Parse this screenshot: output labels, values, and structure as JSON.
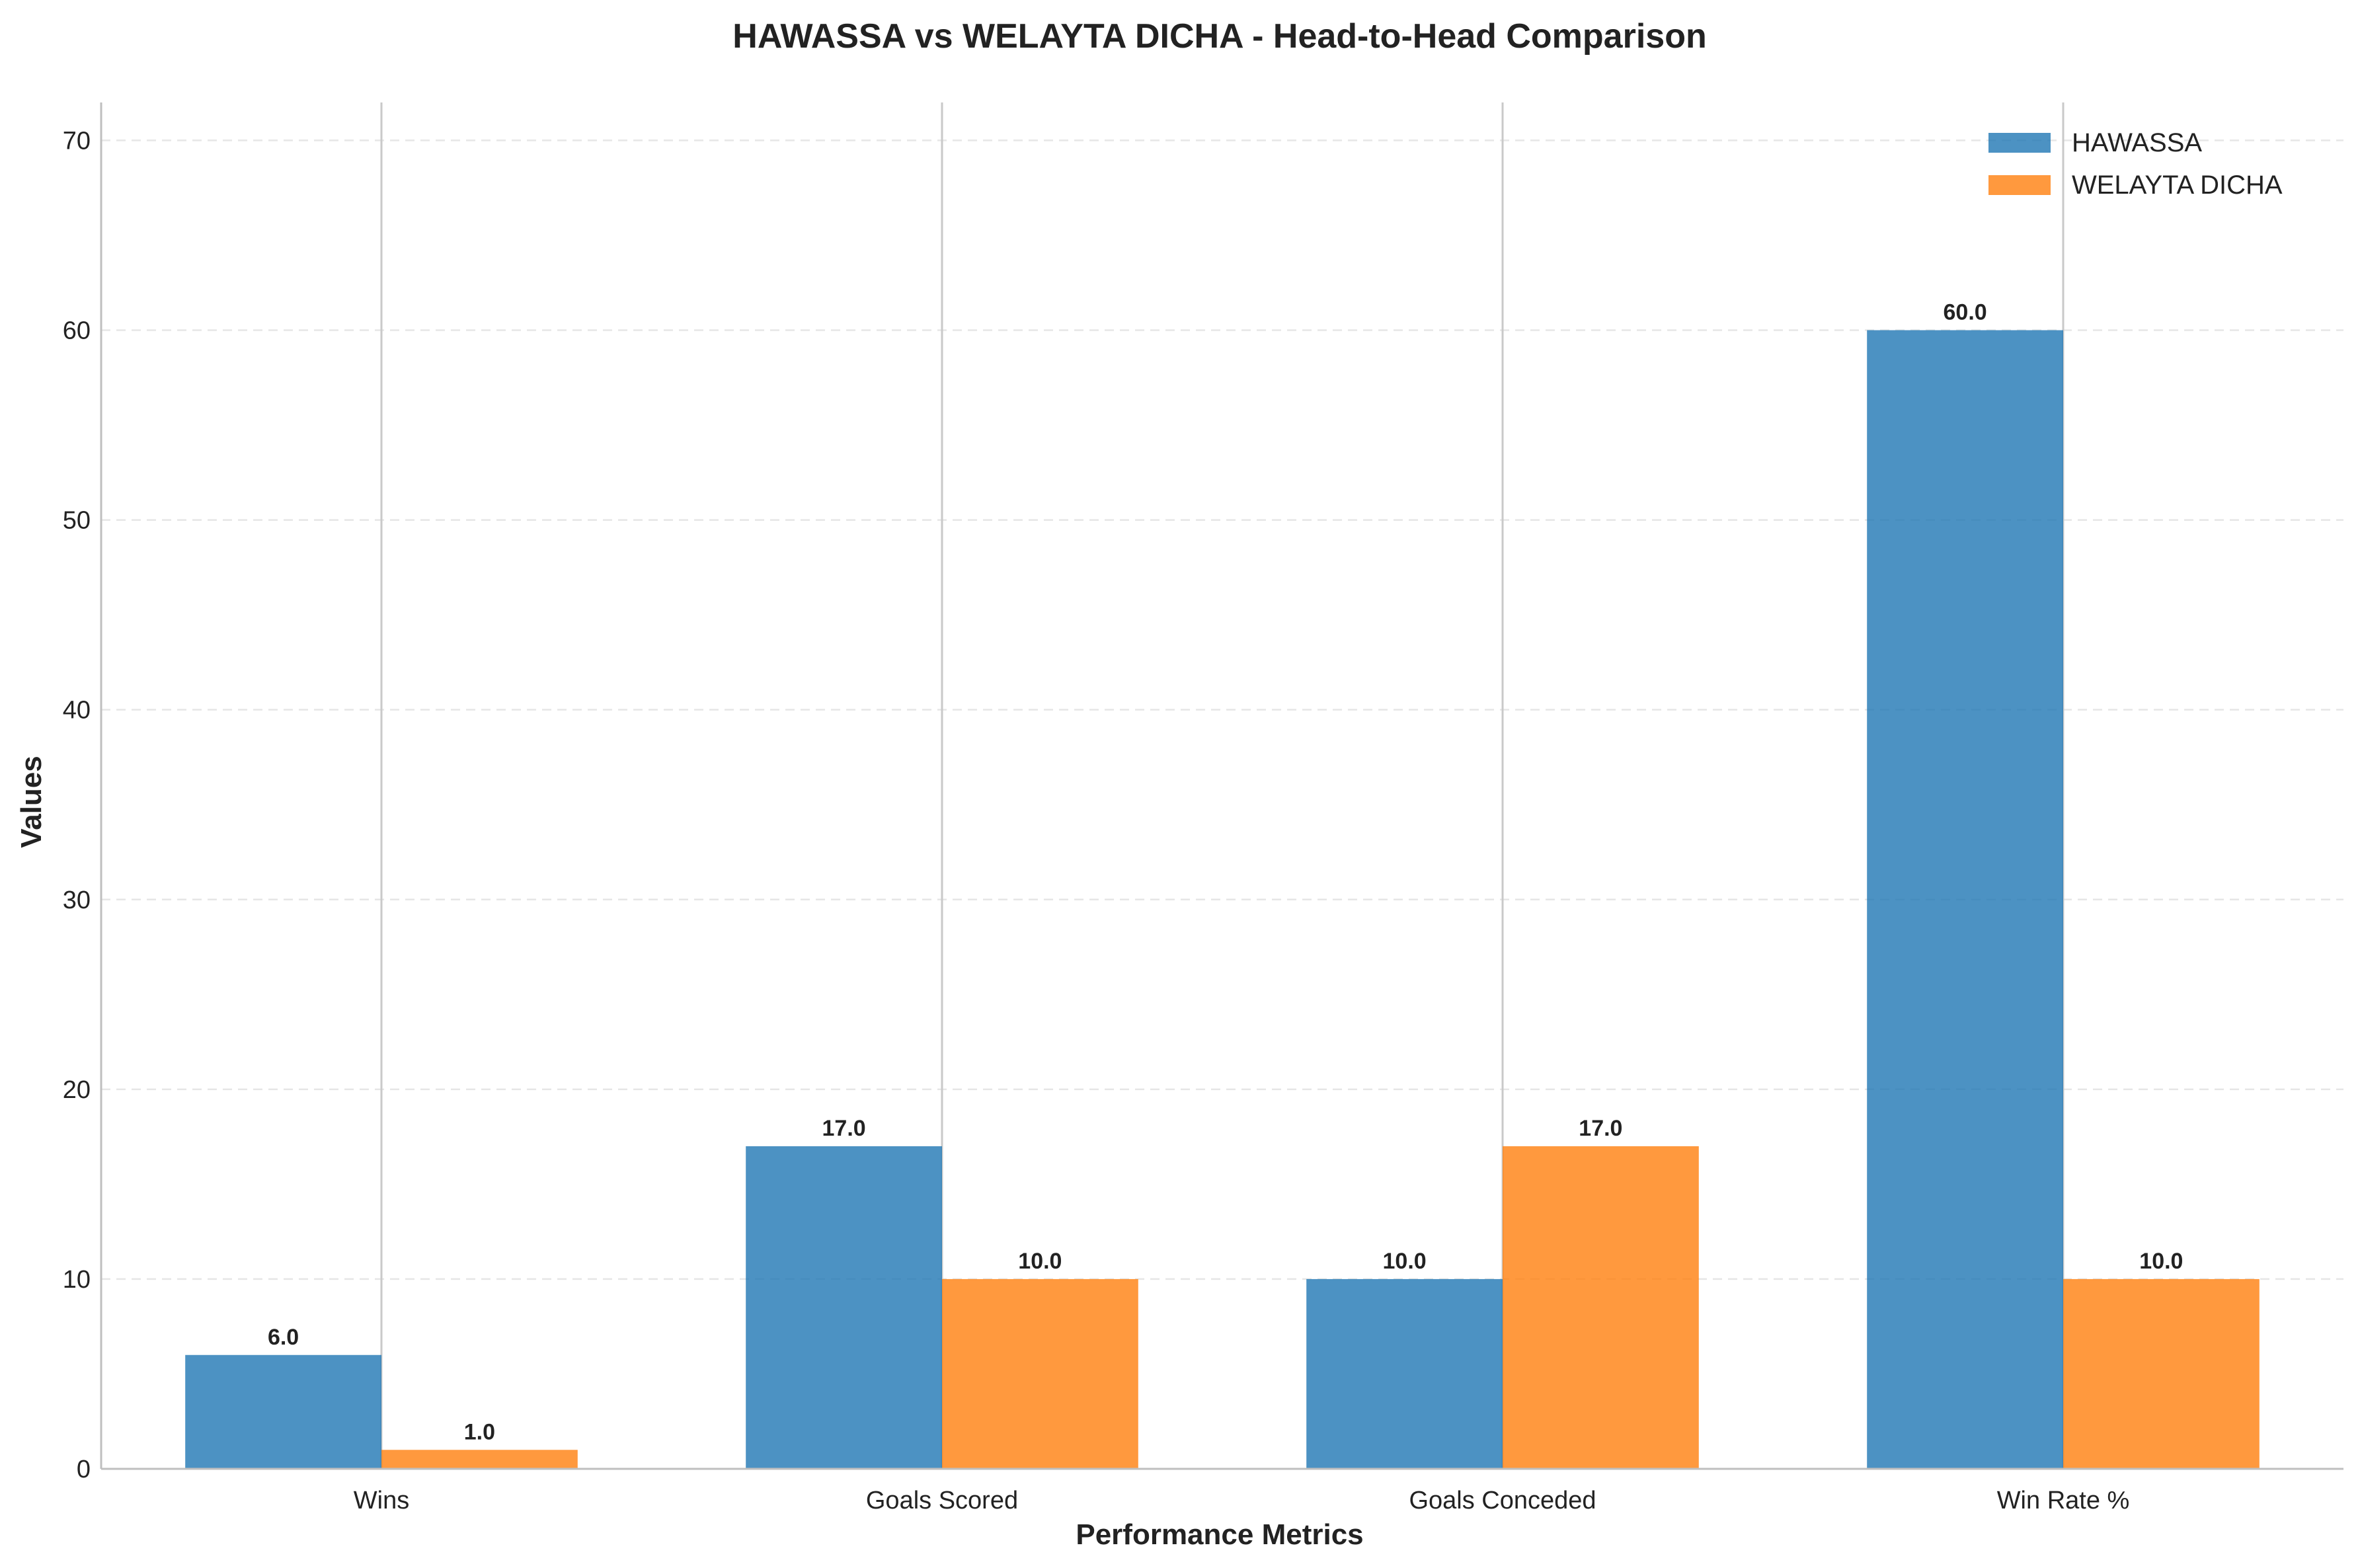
{
  "chart_data": {
    "type": "bar",
    "title": "HAWASSA vs WELAYTA DICHA - Head-to-Head Comparison",
    "xlabel": "Performance Metrics",
    "ylabel": "Values",
    "categories": [
      "Wins",
      "Goals Scored",
      "Goals Conceded",
      "Win Rate %"
    ],
    "series": [
      {
        "name": "HAWASSA",
        "values": [
          6.0,
          17.0,
          10.0,
          60.0
        ],
        "labels": [
          "6.0",
          "17.0",
          "10.0",
          "60.0"
        ],
        "color": "#1f77b4"
      },
      {
        "name": "WELAYTA DICHA",
        "values": [
          1.0,
          10.0,
          17.0,
          10.0
        ],
        "labels": [
          "1.0",
          "10.0",
          "17.0",
          "10.0"
        ],
        "color": "#ff7f0e"
      }
    ],
    "ylim": [
      0,
      72
    ],
    "yticks": [
      "0",
      "10",
      "20",
      "30",
      "40",
      "50",
      "60",
      "70"
    ],
    "grid": "y-dashed",
    "legend": "top-right"
  }
}
